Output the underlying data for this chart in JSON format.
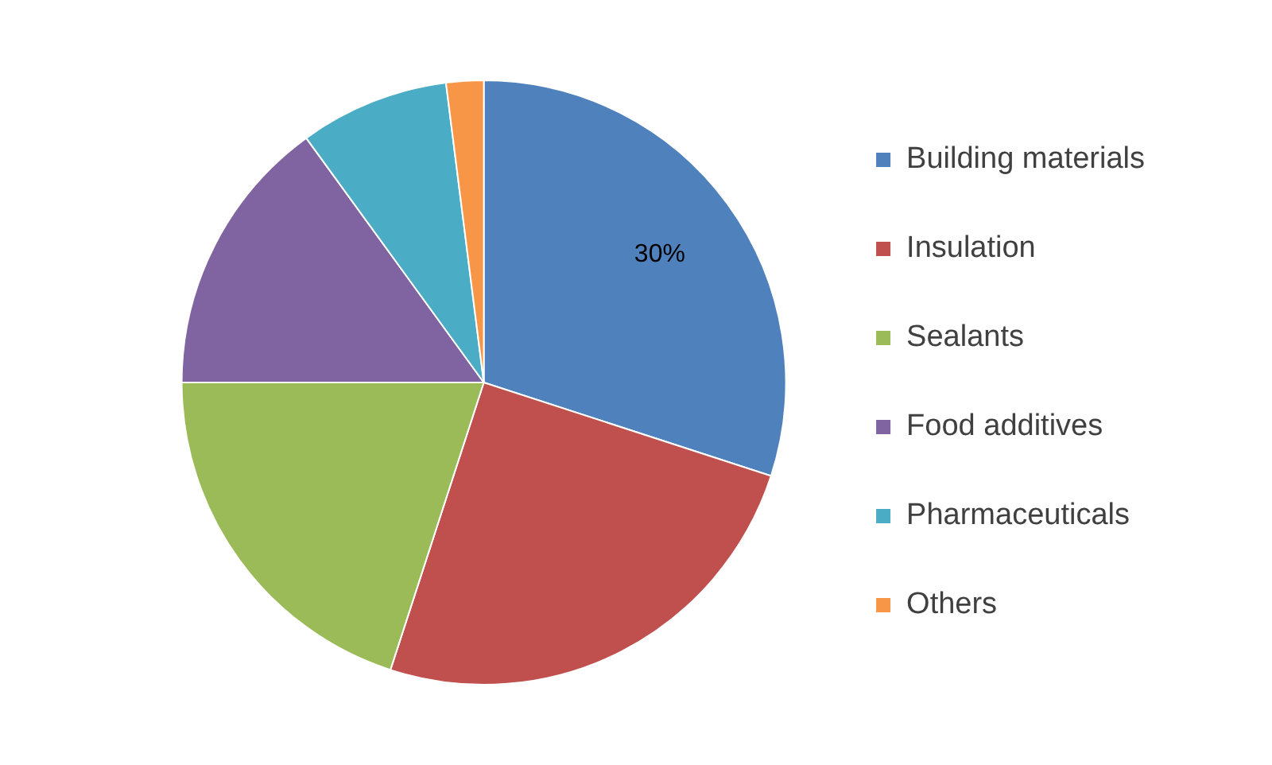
{
  "chart_data": {
    "type": "pie",
    "categories": [
      "Building materials",
      "Insulation",
      "Sealants",
      "Food additives",
      "Pharmaceuticals",
      "Others"
    ],
    "values": [
      30,
      25,
      20,
      15,
      8,
      2
    ],
    "colors": [
      "#4f81bd",
      "#c0504d",
      "#9bbb59",
      "#8064a2",
      "#4bacc6",
      "#f79646"
    ],
    "value_labels": [
      "30%",
      null,
      null,
      null,
      null,
      null
    ],
    "legend": "right"
  }
}
